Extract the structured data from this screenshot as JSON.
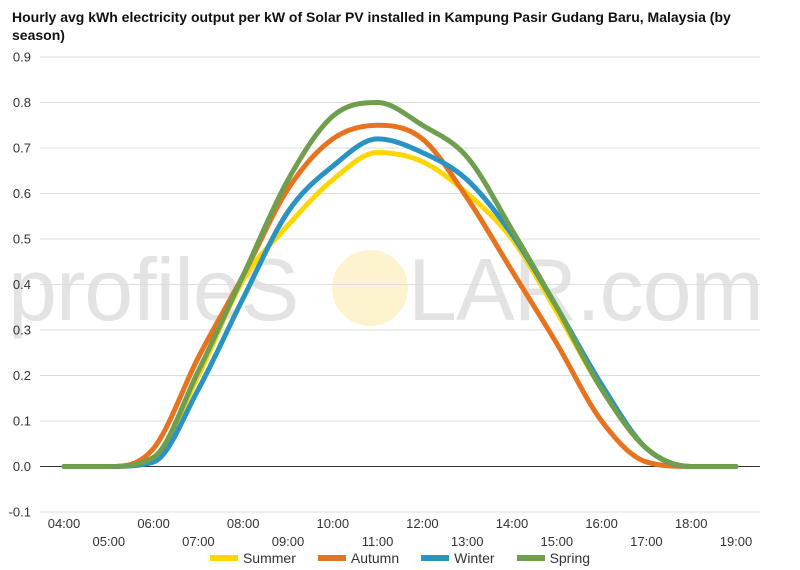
{
  "watermark": {
    "prefix": "profileS",
    "suffix": "LAR.com"
  },
  "chart_data": {
    "type": "line",
    "title": "Hourly avg kWh electricity output per kW of Solar PV installed in Kampung Pasir Gudang Baru, Malaysia (by season)",
    "xlabel": "",
    "ylabel": "",
    "ylim": [
      -0.1,
      0.9
    ],
    "yticks": [
      "-0.1",
      "0.0",
      "0.1",
      "0.2",
      "0.3",
      "0.4",
      "0.5",
      "0.6",
      "0.7",
      "0.8",
      "0.9"
    ],
    "categories": [
      "04:00",
      "05:00",
      "06:00",
      "07:00",
      "08:00",
      "09:00",
      "10:00",
      "11:00",
      "12:00",
      "13:00",
      "14:00",
      "15:00",
      "16:00",
      "17:00",
      "18:00",
      "19:00"
    ],
    "grid": true,
    "legend": "bottom",
    "series": [
      {
        "name": "Summer",
        "color": "#FFD700",
        "values": [
          0.0,
          0.0,
          0.02,
          0.2,
          0.41,
          0.53,
          0.63,
          0.69,
          0.67,
          0.6,
          0.5,
          0.34,
          0.17,
          0.04,
          0.0,
          0.0
        ]
      },
      {
        "name": "Autumn",
        "color": "#E8731F",
        "values": [
          0.0,
          0.0,
          0.04,
          0.24,
          0.42,
          0.61,
          0.72,
          0.75,
          0.72,
          0.59,
          0.43,
          0.27,
          0.1,
          0.01,
          0.0,
          0.0
        ]
      },
      {
        "name": "Winter",
        "color": "#2A93C2",
        "values": [
          0.0,
          0.0,
          0.01,
          0.17,
          0.37,
          0.56,
          0.66,
          0.72,
          0.69,
          0.63,
          0.51,
          0.35,
          0.18,
          0.04,
          0.0,
          0.0
        ]
      },
      {
        "name": "Spring",
        "color": "#6E9E4E",
        "values": [
          0.0,
          0.0,
          0.02,
          0.21,
          0.42,
          0.63,
          0.77,
          0.8,
          0.75,
          0.68,
          0.52,
          0.35,
          0.17,
          0.04,
          0.0,
          0.0
        ]
      }
    ]
  }
}
